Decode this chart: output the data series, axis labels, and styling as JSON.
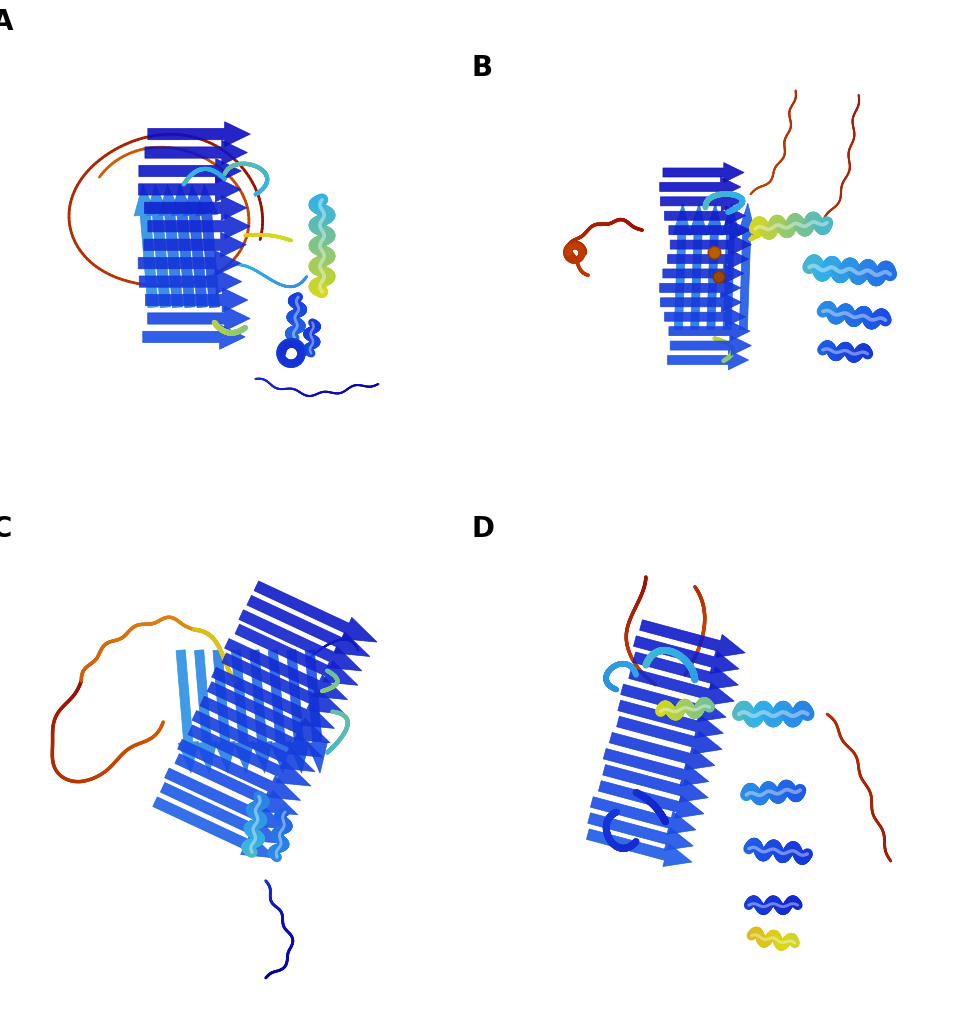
{
  "background_color": "#ffffff",
  "label_fontsize": 20,
  "label_fontweight": "bold",
  "panels": [
    "A",
    "B",
    "C",
    "D"
  ],
  "rainbow_stops": [
    [
      0.0,
      [
        0.6,
        0.05,
        0.0
      ]
    ],
    [
      0.1,
      [
        0.8,
        0.3,
        0.0
      ]
    ],
    [
      0.2,
      [
        0.9,
        0.6,
        0.1
      ]
    ],
    [
      0.35,
      [
        0.85,
        0.85,
        0.1
      ]
    ],
    [
      0.5,
      [
        0.2,
        0.7,
        0.9
      ]
    ],
    [
      0.65,
      [
        0.1,
        0.3,
        0.9
      ]
    ],
    [
      0.8,
      [
        0.05,
        0.05,
        0.75
      ]
    ],
    [
      1.0,
      [
        0.0,
        0.0,
        0.55
      ]
    ]
  ]
}
